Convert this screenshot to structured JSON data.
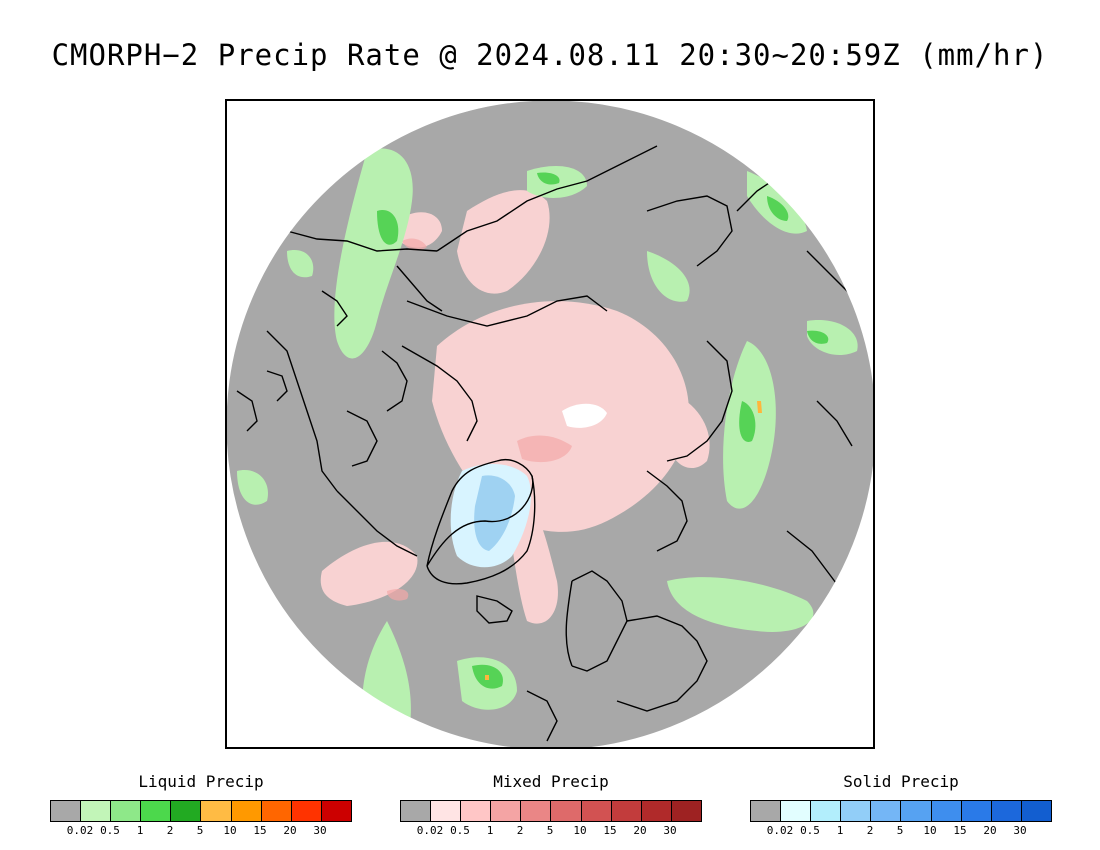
{
  "title": "CMORPH−2 Precip Rate @ 2024.08.11 20:30~20:59Z (mm/hr)",
  "map": {
    "projection": "north polar stereographic",
    "colors": {
      "no_precip": "#a8a8a8",
      "liquid_light": "#b8f0b0",
      "liquid_mid": "#7ee07a",
      "liquid_heavy": "#2fb82f",
      "mixed_light": "#ffd8d8",
      "mixed_mid": "#f0a0a0",
      "solid_light": "#d8f4ff",
      "solid_mid": "#9fd2f2",
      "coastline": "#000000"
    }
  },
  "legends": [
    {
      "name": "liquid",
      "title": "Liquid Precip",
      "colors": [
        "#a8a8a8",
        "#c2f5b8",
        "#8ee889",
        "#4cd84c",
        "#22aa22",
        "#ffbb44",
        "#ff9900",
        "#ff6600",
        "#ff3300",
        "#cc0000"
      ],
      "ticks": [
        "0.02",
        "0.5",
        "1",
        "2",
        "5",
        "10",
        "15",
        "20",
        "30"
      ]
    },
    {
      "name": "mixed",
      "title": "Mixed Precip",
      "colors": [
        "#a8a8a8",
        "#ffe4e4",
        "#ffc6c6",
        "#f4a4a4",
        "#ea8686",
        "#de6a6a",
        "#d25252",
        "#c23c3c",
        "#b02a2a",
        "#9e2222"
      ],
      "ticks": [
        "0.02",
        "0.5",
        "1",
        "2",
        "5",
        "10",
        "15",
        "20",
        "30"
      ]
    },
    {
      "name": "solid",
      "title": "Solid Precip",
      "colors": [
        "#a8a8a8",
        "#e2feff",
        "#b2eefc",
        "#92cef8",
        "#74b6f6",
        "#56a2f2",
        "#3e8eee",
        "#2a7ae8",
        "#1c68dc",
        "#125ed0"
      ],
      "ticks": [
        "0.02",
        "0.5",
        "1",
        "2",
        "5",
        "10",
        "15",
        "20",
        "30"
      ]
    }
  ]
}
